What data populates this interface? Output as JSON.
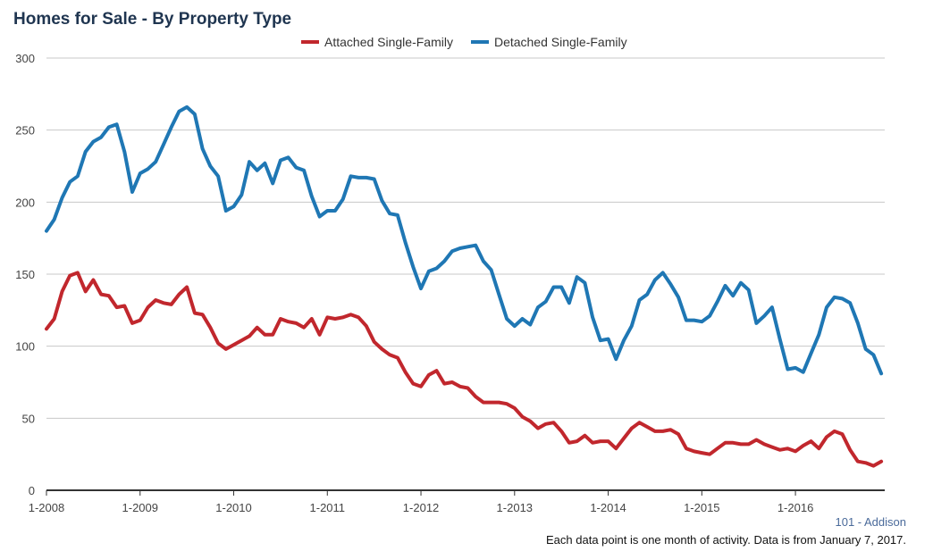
{
  "title": "Homes for Sale - By Property Type",
  "source": "101 - Addison",
  "note": "Each data point is one month of activity. Data is from January 7, 2017.",
  "chart_data": {
    "type": "line",
    "title": "Homes for Sale - By Property Type",
    "xlabel": "",
    "ylabel": "",
    "ylim": [
      0,
      300
    ],
    "yticks": [
      0,
      50,
      100,
      150,
      200,
      250,
      300
    ],
    "x_start": "1-2008",
    "x_ticks": [
      "1-2008",
      "1-2009",
      "1-2010",
      "1-2011",
      "1-2012",
      "1-2013",
      "1-2014",
      "1-2015",
      "1-2016"
    ],
    "grid": true,
    "legend": "top-center",
    "series": [
      {
        "name": "Attached Single-Family",
        "color": "#c1272d",
        "values": [
          112,
          119,
          138,
          149,
          151,
          138,
          146,
          136,
          135,
          127,
          128,
          116,
          118,
          127,
          132,
          130,
          129,
          136,
          141,
          123,
          122,
          113,
          102,
          98,
          101,
          104,
          107,
          113,
          108,
          108,
          119,
          117,
          116,
          113,
          119,
          108,
          120,
          119,
          120,
          122,
          120,
          114,
          103,
          98,
          94,
          92,
          82,
          74,
          72,
          80,
          83,
          74,
          75,
          72,
          71,
          65,
          61,
          61,
          61,
          60,
          57,
          51,
          48,
          43,
          46,
          47,
          41,
          33,
          34,
          38,
          33,
          34,
          34,
          29,
          36,
          43,
          47,
          44,
          41,
          41,
          42,
          39,
          29,
          27,
          26,
          25,
          29,
          33,
          33,
          32,
          32,
          35,
          32,
          30,
          28,
          29,
          27,
          31,
          34,
          29,
          37,
          41,
          39,
          28,
          20,
          19,
          17,
          20
        ]
      },
      {
        "name": "Detached Single-Family",
        "color": "#1f77b4",
        "values": [
          180,
          188,
          203,
          214,
          218,
          235,
          242,
          245,
          252,
          254,
          235,
          207,
          220,
          223,
          228,
          240,
          252,
          263,
          266,
          261,
          237,
          225,
          218,
          194,
          197,
          205,
          228,
          222,
          227,
          213,
          229,
          231,
          224,
          222,
          204,
          190,
          194,
          194,
          202,
          218,
          217,
          217,
          216,
          201,
          192,
          191,
          172,
          155,
          140,
          152,
          154,
          159,
          166,
          168,
          169,
          170,
          159,
          153,
          136,
          119,
          114,
          119,
          115,
          127,
          131,
          141,
          141,
          130,
          148,
          144,
          120,
          104,
          105,
          91,
          104,
          114,
          132,
          136,
          146,
          151,
          143,
          134,
          118,
          118,
          117,
          121,
          131,
          142,
          135,
          144,
          139,
          116,
          121,
          127,
          105,
          84,
          85,
          82,
          95,
          108,
          127,
          134,
          133,
          130,
          116,
          98,
          94,
          81
        ]
      }
    ]
  }
}
